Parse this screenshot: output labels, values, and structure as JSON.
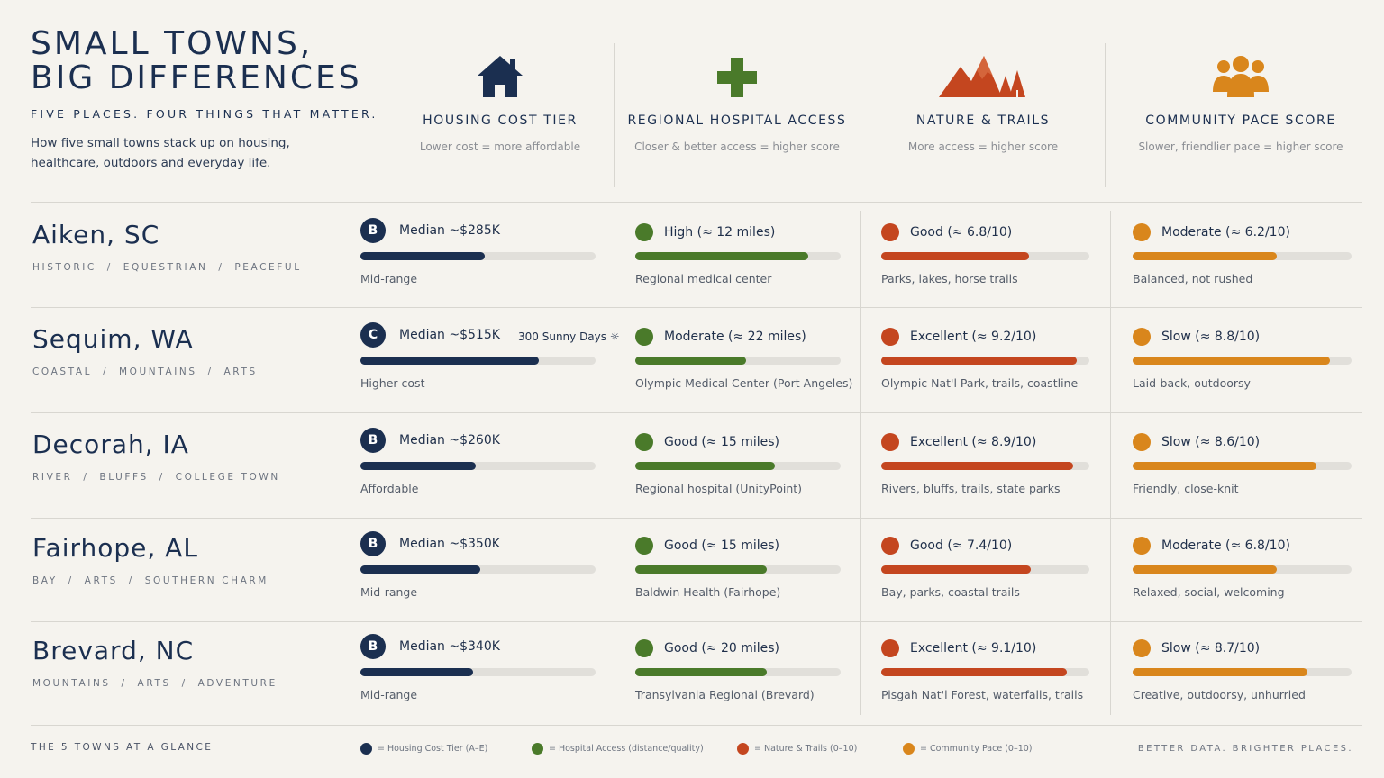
{
  "header": {
    "title_line1": "SMALL TOWNS,",
    "title_line2": "BIG DIFFERENCES",
    "tagline": "FIVE PLACES. FOUR THINGS THAT MATTER.",
    "intro": "How five small towns stack up on housing, healthcare, outdoors and everyday life."
  },
  "colors": {
    "housing": "#1b2f50",
    "hospital": "#4a7a2a",
    "nature": "#c4461f",
    "pace": "#d9861c",
    "track": "#e1dfda"
  },
  "columns": [
    {
      "icon": "house-icon",
      "title": "HOUSING COST TIER",
      "subtitle": "Lower cost = more affordable"
    },
    {
      "icon": "medical-cross-icon",
      "title": "REGIONAL HOSPITAL ACCESS",
      "subtitle": "Closer & better access = higher score"
    },
    {
      "icon": "mountains-trees-icon",
      "title": "NATURE & TRAILS",
      "subtitle": "More access = higher score"
    },
    {
      "icon": "people-group-icon",
      "title": "COMMUNITY PACE SCORE",
      "subtitle": "Slower, friendlier pace = higher score"
    }
  ],
  "towns": [
    {
      "name": "Aiken, SC",
      "tags": "HISTORIC  /  EQUESTRIAN  /  PEACEFUL",
      "housing": {
        "tier": "B",
        "label": "Median ~$285K",
        "level": 0.53,
        "note": "Mid-range",
        "extra": ""
      },
      "hospital": {
        "label": "High (≈ 12 miles)",
        "level": 0.84,
        "note": "Regional medical center"
      },
      "nature": {
        "label": "Good (≈ 6.8/10)",
        "level": 0.71,
        "note": "Parks, lakes, horse trails"
      },
      "pace": {
        "label": "Moderate (≈ 6.2/10)",
        "level": 0.66,
        "note": "Balanced, not rushed"
      }
    },
    {
      "name": "Sequim, WA",
      "tags": "COASTAL  /  MOUNTAINS  /  ARTS",
      "housing": {
        "tier": "C",
        "label": "Median ~$515K",
        "level": 0.76,
        "note": "Higher cost",
        "extra": "300 Sunny Days ☼"
      },
      "hospital": {
        "label": "Moderate (≈ 22 miles)",
        "level": 0.54,
        "note": "Olympic Medical Center (Port Angeles)"
      },
      "nature": {
        "label": "Excellent (≈ 9.2/10)",
        "level": 0.94,
        "note": "Olympic Nat'l Park, trails, coastline"
      },
      "pace": {
        "label": "Slow (≈ 8.8/10)",
        "level": 0.9,
        "note": "Laid-back, outdoorsy"
      }
    },
    {
      "name": "Decorah, IA",
      "tags": "RIVER  /  BLUFFS  /  COLLEGE TOWN",
      "housing": {
        "tier": "B",
        "label": "Median ~$260K",
        "level": 0.49,
        "note": "Affordable",
        "extra": ""
      },
      "hospital": {
        "label": "Good (≈ 15 miles)",
        "level": 0.68,
        "note": "Regional hospital (UnityPoint)"
      },
      "nature": {
        "label": "Excellent (≈ 8.9/10)",
        "level": 0.92,
        "note": "Rivers, bluffs, trails, state parks"
      },
      "pace": {
        "label": "Slow (≈ 8.6/10)",
        "level": 0.84,
        "note": "Friendly, close-knit"
      }
    },
    {
      "name": "Fairhope, AL",
      "tags": "BAY  /  ARTS  /  SOUTHERN CHARM",
      "housing": {
        "tier": "B",
        "label": "Median ~$350K",
        "level": 0.51,
        "note": "Mid-range",
        "extra": ""
      },
      "hospital": {
        "label": "Good (≈ 15 miles)",
        "level": 0.64,
        "note": "Baldwin Health (Fairhope)"
      },
      "nature": {
        "label": "Good (≈ 7.4/10)",
        "level": 0.72,
        "note": "Bay, parks, coastal trails"
      },
      "pace": {
        "label": "Moderate (≈ 6.8/10)",
        "level": 0.66,
        "note": "Relaxed, social, welcoming"
      }
    },
    {
      "name": "Brevard, NC",
      "tags": "MOUNTAINS  /  ARTS  /  ADVENTURE",
      "housing": {
        "tier": "B",
        "label": "Median ~$340K",
        "level": 0.48,
        "note": "Mid-range",
        "extra": ""
      },
      "hospital": {
        "label": "Good (≈ 20 miles)",
        "level": 0.64,
        "note": "Transylvania Regional (Brevard)"
      },
      "nature": {
        "label": "Excellent (≈ 9.1/10)",
        "level": 0.89,
        "note": "Pisgah Nat'l Forest, waterfalls, trails"
      },
      "pace": {
        "label": "Slow (≈ 8.7/10)",
        "level": 0.8,
        "note": "Creative, outdoorsy, unhurried"
      }
    }
  ],
  "footer": {
    "left": "THE 5 TOWNS AT A GLANCE",
    "right": "BETTER DATA. BRIGHTER PLACES.",
    "legend": [
      {
        "label": "= Housing Cost Tier (A–E)"
      },
      {
        "label": "= Hospital Access (distance/quality)"
      },
      {
        "label": "= Nature & Trails (0–10)"
      },
      {
        "label": "= Community Pace (0–10)"
      }
    ]
  }
}
